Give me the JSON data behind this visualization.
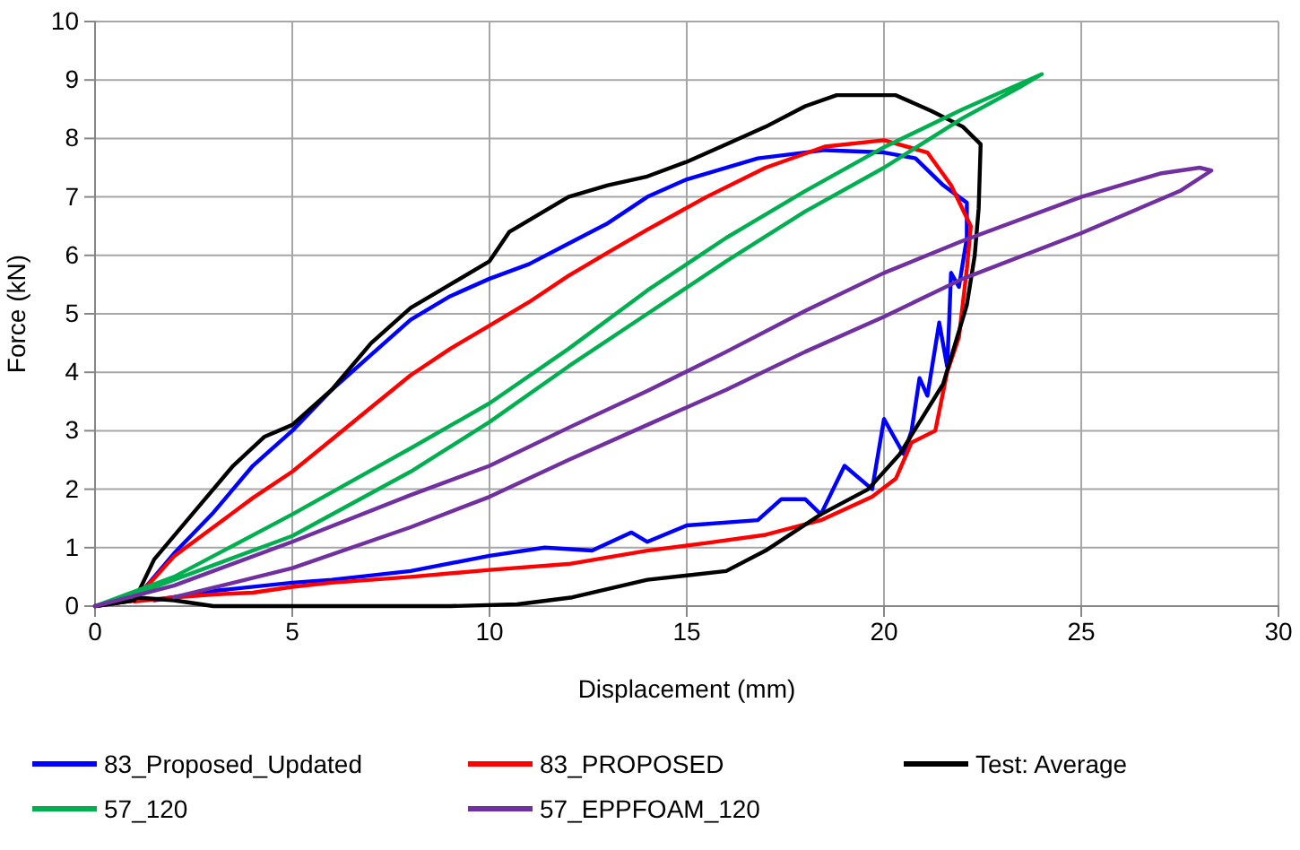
{
  "chart_data": {
    "type": "line",
    "xlabel": "Displacement (mm)",
    "ylabel": "Force (kN)",
    "xlim": [
      0,
      30
    ],
    "xticks": [
      0,
      5,
      10,
      15,
      20,
      25,
      30
    ],
    "ylim": [
      0,
      10
    ],
    "yticks": [
      0,
      1,
      2,
      3,
      4,
      5,
      6,
      7,
      8,
      9,
      10
    ],
    "grid": true,
    "legend": "bottom",
    "marker": "none",
    "line_style": "solid",
    "series": [
      {
        "name": "83_Proposed_Updated",
        "color": "#0000ff",
        "x": [
          0,
          1,
          2,
          3,
          4,
          5,
          6,
          7,
          8,
          9,
          10,
          11,
          12,
          13,
          14,
          15,
          16.8,
          18.5,
          20,
          20.8,
          21.5,
          22.1,
          22.1,
          21.9,
          21.7,
          21.65,
          21.6,
          21.4,
          21.1,
          20.9,
          20.7,
          20.5,
          20,
          19.7,
          19,
          18.4,
          18,
          17.4,
          16.8,
          15,
          14,
          13.6,
          12.6,
          11.4,
          10,
          8,
          6,
          5,
          3,
          1.5
        ],
        "values": [
          0,
          0.1,
          0.9,
          1.6,
          2.4,
          3.0,
          3.7,
          4.3,
          4.9,
          5.3,
          5.6,
          5.85,
          6.2,
          6.55,
          7.0,
          7.3,
          7.66,
          7.8,
          7.76,
          7.66,
          7.2,
          6.9,
          6.3,
          5.46,
          5.7,
          4.85,
          4.1,
          4.85,
          3.6,
          3.9,
          3.0,
          2.6,
          3.2,
          2.0,
          2.4,
          1.57,
          1.83,
          1.83,
          1.47,
          1.38,
          1.1,
          1.26,
          0.95,
          1.0,
          0.86,
          0.6,
          0.45,
          0.4,
          0.26,
          0.1
        ]
      },
      {
        "name": "83_PROPOSED",
        "color": "#ff0000",
        "x": [
          0,
          1,
          2,
          3,
          4,
          5,
          6,
          7,
          8,
          9,
          10,
          11,
          12,
          13,
          14,
          15.5,
          17,
          18.5,
          20,
          21.1,
          21.7,
          22.2,
          22.1,
          21.9,
          21.6,
          21.3,
          20.7,
          20.3,
          19.7,
          18.4,
          17,
          15.5,
          14,
          12,
          10,
          8,
          6,
          5,
          4,
          3,
          2,
          1
        ],
        "values": [
          0,
          0.1,
          0.85,
          1.35,
          1.85,
          2.3,
          2.85,
          3.4,
          3.95,
          4.4,
          4.8,
          5.2,
          5.65,
          6.05,
          6.44,
          7.0,
          7.5,
          7.86,
          7.97,
          7.76,
          7.2,
          6.5,
          5.77,
          4.6,
          4.0,
          3.0,
          2.8,
          2.18,
          1.87,
          1.47,
          1.22,
          1.08,
          0.95,
          0.72,
          0.62,
          0.5,
          0.4,
          0.33,
          0.23,
          0.2,
          0.15,
          0.08
        ]
      },
      {
        "name": "Test: Average",
        "color": "#000000",
        "x": [
          0,
          1,
          1.5,
          2.5,
          3.5,
          4.3,
          5,
          6,
          7,
          8,
          9,
          10,
          10.5,
          11.5,
          12,
          13,
          14,
          15,
          16,
          17,
          18,
          18.8,
          20.3,
          21.2,
          22,
          22.45,
          22.4,
          22.3,
          22.1,
          21.5,
          20.4,
          19.6,
          18.4,
          17,
          16,
          14,
          12.1,
          10.7,
          9,
          7,
          5,
          3,
          2,
          1
        ],
        "values": [
          0,
          0.1,
          0.8,
          1.6,
          2.4,
          2.9,
          3.1,
          3.7,
          4.5,
          5.1,
          5.5,
          5.9,
          6.4,
          6.8,
          7.0,
          7.2,
          7.35,
          7.6,
          7.9,
          8.2,
          8.55,
          8.74,
          8.74,
          8.47,
          8.2,
          7.9,
          6.8,
          6.0,
          5.15,
          3.8,
          2.6,
          2.0,
          1.57,
          0.95,
          0.6,
          0.45,
          0.15,
          0.03,
          0,
          0,
          0,
          0,
          0.1,
          0.15
        ]
      },
      {
        "name": "57_120",
        "color": "#00b050",
        "x": [
          0,
          2,
          5,
          8,
          10,
          12,
          14,
          16,
          18,
          20,
          22,
          23,
          24,
          23.5,
          22,
          20,
          18,
          16,
          14,
          12,
          10,
          8,
          5,
          3,
          1
        ],
        "values": [
          0,
          0.5,
          1.57,
          2.7,
          3.47,
          4.4,
          5.4,
          6.3,
          7.1,
          7.85,
          8.5,
          8.8,
          9.1,
          8.9,
          8.35,
          7.5,
          6.75,
          5.9,
          5.0,
          4.1,
          3.15,
          2.3,
          1.2,
          0.7,
          0.2
        ]
      },
      {
        "name": "57_EPPFOAM_120",
        "color": "#7030a0",
        "x": [
          0,
          2,
          5,
          8,
          10,
          12,
          14,
          16,
          18,
          20,
          22,
          25,
          27,
          28,
          28.3,
          27.5,
          25,
          22,
          20,
          18,
          16,
          14,
          12,
          10,
          8,
          5,
          2
        ],
        "values": [
          0,
          0.35,
          1.1,
          1.9,
          2.4,
          3.05,
          3.68,
          4.35,
          5.05,
          5.7,
          6.25,
          7.0,
          7.4,
          7.5,
          7.45,
          7.1,
          6.38,
          5.6,
          4.95,
          4.35,
          3.7,
          3.1,
          2.5,
          1.87,
          1.35,
          0.65,
          0.15
        ]
      }
    ]
  }
}
